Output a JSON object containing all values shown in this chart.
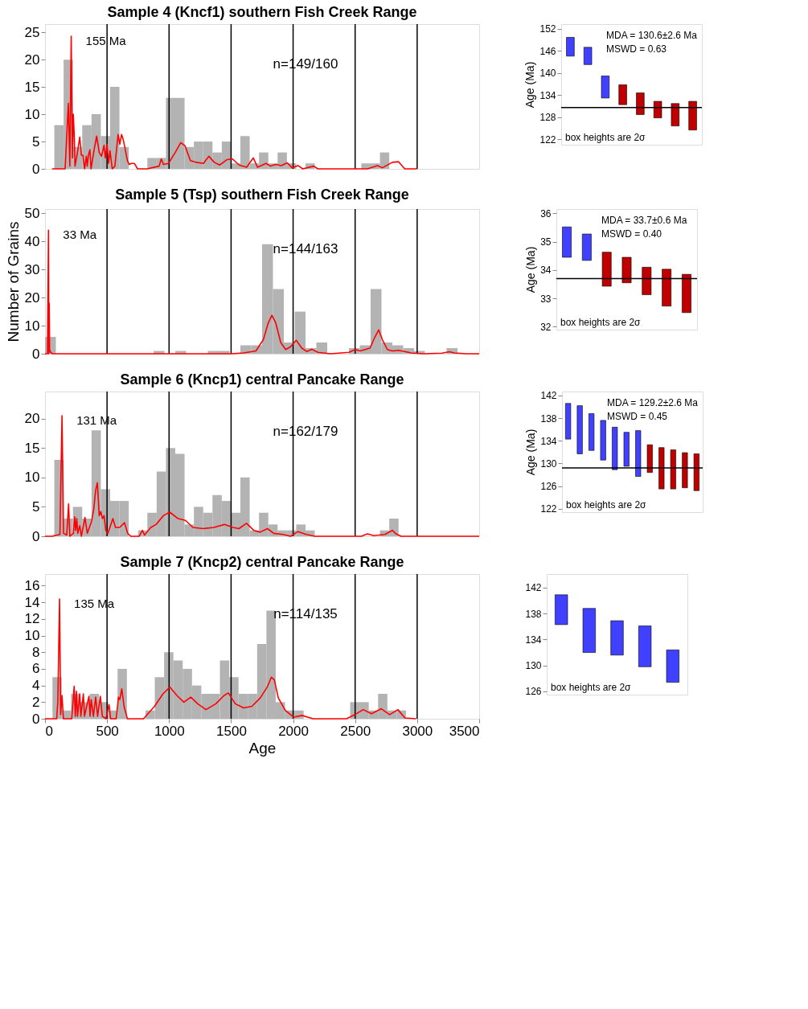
{
  "chart_data": [
    {
      "type": "histogram",
      "title": "Sample 4 (Kncf1) southern Fish Creek Range",
      "color": "#b3b3b3",
      "bins": [
        75,
        150,
        225,
        300,
        375,
        450,
        525,
        600,
        675,
        750,
        825,
        900,
        975,
        1050,
        1125,
        1200,
        1275,
        1350,
        1425,
        1500,
        1575,
        1650,
        1725,
        1800,
        1875,
        1950,
        2025,
        2100,
        2175,
        2250,
        2325,
        2400,
        2475,
        2550,
        2625,
        2700,
        2775
      ],
      "values": [
        8,
        20,
        4,
        8,
        10,
        6,
        15,
        4,
        0,
        0,
        2,
        2,
        13,
        13,
        4,
        5,
        5,
        3,
        5,
        1,
        6,
        1,
        3,
        1,
        3,
        1,
        0,
        1,
        0,
        0,
        0,
        0,
        0,
        1,
        1,
        3
      ],
      "series": [
        {
          "type": "line",
          "color": "#ff0000",
          "x": [
            57,
            162,
            188,
            200,
            211,
            221,
            228,
            235,
            242,
            258,
            280,
            293,
            305,
            319,
            333,
            340,
            350,
            362,
            371,
            392,
            416,
            437,
            455,
            476,
            486,
            500,
            512,
            524,
            542,
            563,
            589,
            603,
            617,
            629,
            643,
            664,
            679,
            697,
            720,
            746,
            824,
            920,
            937,
            955,
            995,
            1050,
            1094,
            1129,
            1172,
            1216,
            1277,
            1321,
            1364,
            1408,
            1469,
            1512,
            1564,
            1625,
            1679,
            1713,
            1782,
            1817,
            1861,
            1904,
            1953,
            1991,
            2040,
            2078,
            2166,
            2200,
            2600,
            2680,
            2720,
            2800,
            2850,
            2900,
            3000
          ],
          "values": [
            0,
            0,
            12,
            0.5,
            24.3,
            2,
            10,
            6.5,
            0.5,
            2.5,
            5.8,
            2.5,
            2.5,
            0,
            2.3,
            0.5,
            2.5,
            3.5,
            0,
            3,
            6,
            3,
            2.3,
            4.3,
            2,
            4.5,
            1,
            3.3,
            0,
            0.5,
            6.3,
            4.5,
            6.3,
            5.5,
            4,
            1.5,
            0.8,
            1,
            1,
            0,
            0,
            0.5,
            1.8,
            0.8,
            1,
            3,
            4.8,
            4.2,
            1.5,
            1.2,
            1,
            2.3,
            1.2,
            0.7,
            1.7,
            1.8,
            0.7,
            0.3,
            2,
            0.3,
            1,
            0.5,
            0.8,
            0.6,
            1.1,
            0.2,
            0.6,
            0,
            0.5,
            0,
            0,
            0.6,
            0.2,
            1.2,
            1.3,
            0,
            0
          ]
        }
      ],
      "xlim": [
        0,
        3500
      ],
      "ylim": [
        0,
        26.5
      ],
      "yticks": [
        0,
        5,
        10,
        15,
        20,
        25
      ],
      "tick_labels": "y",
      "ref_lines": [
        {
          "axis": "x",
          "value": 500,
          "color": "#000000"
        },
        {
          "axis": "x",
          "value": 1000,
          "color": "#000000"
        },
        {
          "axis": "x",
          "value": 1500,
          "color": "#000000"
        },
        {
          "axis": "x",
          "value": 2000,
          "color": "#000000"
        },
        {
          "axis": "x",
          "value": 2500,
          "color": "#000000"
        },
        {
          "axis": "x",
          "value": 3000,
          "color": "#000000"
        }
      ],
      "annotations": [
        {
          "text": "155 Ma",
          "x": 211,
          "y": 24.3
        },
        "n=149/160"
      ]
    },
    {
      "type": "bar",
      "categories": [
        null,
        null,
        null,
        null,
        null,
        null,
        null,
        null
      ],
      "ylabel": "Age (Ma)",
      "base": [
        144.6,
        142.3,
        133.2,
        131.4,
        128.7,
        127.8,
        125.6,
        124.5
      ],
      "values": [
        5.1,
        4.7,
        6.0,
        5.4,
        5.9,
        4.5,
        6.1,
        7.8
      ],
      "colors": [
        "#4040ff",
        "#4040ff",
        "#4040ff",
        "#c00000",
        "#c00000",
        "#c00000",
        "#c00000",
        "#c00000"
      ],
      "ref_lines": [
        {
          "axis": "y",
          "value": 130.6,
          "color": "#000000"
        }
      ],
      "ylim": [
        120.5,
        153.3
      ],
      "yticks": [
        122,
        128,
        134,
        140,
        146,
        152
      ],
      "tick_labels": "y",
      "annotations": [
        "MDA = 130.6±2.6 Ma",
        "MSWD = 0.63",
        "box heights are 2σ"
      ]
    },
    {
      "type": "histogram",
      "title": "Sample 5 (Tsp) southern Fish Creek Range",
      "color": "#b3b3b3",
      "ylabel": "Number of Grains",
      "bins": [
        0,
        87.5,
        175,
        262.5,
        350,
        437.5,
        525,
        612.5,
        700,
        787.5,
        875,
        962.5,
        1050,
        1137.5,
        1225,
        1312.5,
        1400,
        1487.5,
        1575,
        1662.5,
        1750,
        1837.5,
        1925,
        2012.5,
        2100,
        2187.5,
        2275,
        2362.5,
        2450,
        2537.5,
        2625,
        2712.5,
        2800,
        2887.5,
        2975,
        3062.5,
        3150,
        3237.5,
        3325
      ],
      "values": [
        6,
        0,
        0,
        0,
        0,
        0,
        0,
        0,
        0,
        0,
        1,
        0,
        1,
        0,
        0,
        1,
        1,
        0,
        3,
        3,
        39,
        23,
        4,
        15,
        2,
        4,
        0,
        0,
        2,
        3,
        23,
        4,
        3,
        2,
        1,
        0,
        0,
        2
      ],
      "series": [
        {
          "type": "line",
          "color": "#ff0000",
          "x": [
            0,
            20,
            28,
            31,
            34,
            37,
            45,
            60,
            1500,
            1600,
            1700,
            1760,
            1800,
            1829,
            1860,
            1900,
            1940,
            1980,
            2025,
            2070,
            2110,
            2150,
            2200,
            2300,
            2450,
            2500,
            2540,
            2580,
            2620,
            2660,
            2690,
            2720,
            2760,
            2800,
            2850,
            2900,
            2950,
            3050,
            3200,
            3260,
            3300,
            3400,
            3500
          ],
          "values": [
            0,
            0,
            44,
            0,
            18,
            1.5,
            0.5,
            0,
            0,
            0.3,
            1,
            5,
            11,
            13.7,
            11,
            4,
            1.5,
            2.5,
            4.8,
            2,
            0.8,
            1.6,
            0.5,
            0,
            0.5,
            1.5,
            1,
            1.5,
            2,
            6,
            8.5,
            5,
            1.5,
            1,
            1.2,
            0.8,
            0.3,
            0,
            0.2,
            0.7,
            0.3,
            0,
            0
          ]
        }
      ],
      "xlim": [
        0,
        3500
      ],
      "ylim": [
        0,
        51.5
      ],
      "yticks": [
        0,
        10,
        20,
        30,
        40,
        50
      ],
      "tick_labels": "y",
      "ref_lines": [
        {
          "axis": "x",
          "value": 500,
          "color": "#000000"
        },
        {
          "axis": "x",
          "value": 1000,
          "color": "#000000"
        },
        {
          "axis": "x",
          "value": 1500,
          "color": "#000000"
        },
        {
          "axis": "x",
          "value": 2000,
          "color": "#000000"
        },
        {
          "axis": "x",
          "value": 2500,
          "color": "#000000"
        },
        {
          "axis": "x",
          "value": 3000,
          "color": "#000000"
        }
      ],
      "annotations": [
        {
          "text": "33 Ma",
          "x": 28,
          "y": 44
        },
        "n=144/163"
      ]
    },
    {
      "type": "bar",
      "categories": [
        null,
        null,
        null,
        null,
        null,
        null,
        null
      ],
      "ylabel": "Age (Ma)",
      "base": [
        34.45,
        34.34,
        33.43,
        33.55,
        33.13,
        32.73,
        32.5
      ],
      "values": [
        1.07,
        0.93,
        1.2,
        0.9,
        0.97,
        1.3,
        1.35
      ],
      "colors": [
        "#4040ff",
        "#4040ff",
        "#c00000",
        "#c00000",
        "#c00000",
        "#c00000",
        "#c00000"
      ],
      "ref_lines": [
        {
          "axis": "y",
          "value": 33.7,
          "color": "#000000"
        }
      ],
      "ylim": [
        31.9,
        36.15
      ],
      "yticks": [
        32,
        33,
        34,
        35,
        36
      ],
      "tick_labels": "y",
      "annotations": [
        "MDA = 33.7±0.6 Ma",
        "MSWD = 0.40",
        "box heights are 2σ"
      ]
    },
    {
      "type": "histogram",
      "title": "Sample 6 (Kncp1) central Pancake Range",
      "color": "#b3b3b3",
      "bins": [
        75,
        150,
        225,
        300,
        375,
        450,
        525,
        600,
        675,
        750,
        825,
        900,
        975,
        1050,
        1125,
        1200,
        1275,
        1350,
        1425,
        1500,
        1575,
        1650,
        1725,
        1800,
        1875,
        1950,
        2025,
        2100,
        2175,
        2250,
        2325,
        2400,
        2475,
        2550,
        2625,
        2700,
        2775,
        2850
      ],
      "values": [
        13,
        3,
        5,
        3,
        18,
        8,
        6,
        6,
        0,
        1,
        4,
        11,
        15,
        14,
        2,
        5,
        4,
        7,
        6,
        4,
        10,
        1,
        4,
        2,
        1,
        1,
        2,
        1,
        0,
        0,
        0,
        0,
        0,
        0,
        0,
        1,
        3
      ],
      "series": [
        {
          "type": "line",
          "color": "#ff0000",
          "x": [
            0,
            56,
            120,
            137,
            149,
            175,
            190,
            200,
            229,
            239,
            247,
            256,
            264,
            280,
            293,
            322,
            341,
            375,
            392,
            408,
            422,
            437,
            449,
            463,
            476,
            490,
            507,
            547,
            568,
            602,
            641,
            666,
            692,
            759,
            785,
            802,
            853,
            895,
            954,
            1005,
            1073,
            1132,
            1192,
            1276,
            1361,
            1446,
            1514,
            1564,
            1624,
            1683,
            1734,
            1793,
            1844,
            1920,
            1980,
            2039,
            2107,
            2175,
            2550,
            2600,
            2650,
            2740,
            2800,
            2830,
            2870,
            3500
          ],
          "values": [
            0,
            0,
            0.3,
            20.5,
            0.5,
            0.2,
            5.5,
            0,
            0.5,
            3.3,
            1,
            3,
            0.5,
            1.8,
            0,
            3.2,
            0.5,
            2.5,
            4.5,
            7.8,
            9.1,
            3.5,
            4.2,
            3,
            3.5,
            1,
            0.5,
            3,
            1.5,
            1.5,
            2.3,
            0.5,
            0,
            0,
            1,
            0.2,
            1.5,
            2,
            3.5,
            4.1,
            3,
            2.7,
            1.5,
            1.3,
            1.5,
            2,
            1.5,
            1.3,
            2.2,
            1,
            0.7,
            1.3,
            0.5,
            0.3,
            0,
            0.8,
            0.3,
            0,
            0,
            0.4,
            0.1,
            0.3,
            1,
            0.4,
            0,
            0
          ]
        }
      ],
      "xlim": [
        0,
        3500
      ],
      "ylim": [
        0,
        24.6
      ],
      "yticks": [
        0,
        5,
        10,
        15,
        20
      ],
      "tick_labels": "y",
      "ref_lines": [
        {
          "axis": "x",
          "value": 500,
          "color": "#000000"
        },
        {
          "axis": "x",
          "value": 1000,
          "color": "#000000"
        },
        {
          "axis": "x",
          "value": 1500,
          "color": "#000000"
        },
        {
          "axis": "x",
          "value": 2000,
          "color": "#000000"
        },
        {
          "axis": "x",
          "value": 2500,
          "color": "#000000"
        },
        {
          "axis": "x",
          "value": 3000,
          "color": "#000000"
        }
      ],
      "annotations": [
        {
          "text": "131 Ma",
          "x": 137,
          "y": 20.5
        },
        "n=162/179"
      ]
    },
    {
      "type": "bar",
      "categories": [
        null,
        null,
        null,
        null,
        null,
        null,
        null,
        null,
        null,
        null,
        null,
        null
      ],
      "ylabel": "Age (Ma)",
      "base": [
        134.3,
        131.7,
        132.3,
        130.6,
        128.9,
        129.5,
        127.7,
        128.4,
        125.5,
        125.5,
        125.7,
        125.2
      ],
      "values": [
        6.3,
        8.5,
        6.5,
        7.0,
        7.5,
        6.0,
        8.1,
        4.9,
        7.3,
        6.9,
        6.2,
        6.5
      ],
      "colors": [
        "#4040ff",
        "#4040ff",
        "#4040ff",
        "#4040ff",
        "#4040ff",
        "#4040ff",
        "#4040ff",
        "#c00000",
        "#c00000",
        "#c00000",
        "#c00000",
        "#c00000"
      ],
      "ref_lines": [
        {
          "axis": "y",
          "value": 129.2,
          "color": "#000000"
        }
      ],
      "ylim": [
        121.4,
        142.7
      ],
      "yticks": [
        122,
        126,
        130,
        134,
        138,
        142
      ],
      "tick_labels": "y",
      "annotations": [
        "MDA = 129.2±2.6 Ma",
        "MSWD = 0.45",
        "box heights are 2σ"
      ]
    },
    {
      "type": "histogram",
      "title": "Sample 7 (Kncp2) central Pancake Range",
      "color": "#b3b3b3",
      "xlabel": "Age",
      "bins": [
        60,
        135,
        210,
        285,
        360,
        435,
        510,
        585,
        660,
        735,
        810,
        885,
        960,
        1035,
        1110,
        1185,
        1260,
        1335,
        1410,
        1485,
        1560,
        1635,
        1710,
        1785,
        1860,
        1935,
        2010,
        2085,
        2160,
        2235,
        2310,
        2385,
        2460,
        2535,
        2610,
        2685,
        2760,
        2835,
        2910
      ],
      "values": [
        5,
        1,
        3,
        2,
        3,
        2,
        1,
        6,
        0,
        0,
        1,
        5,
        8,
        7,
        6,
        4,
        3,
        3,
        7,
        5,
        3,
        3,
        9,
        13,
        2,
        1,
        1,
        0,
        0,
        0,
        0,
        0,
        2,
        2,
        1,
        3,
        1,
        1
      ],
      "series": [
        {
          "type": "line",
          "color": "#ff0000",
          "x": [
            0,
            94,
            103,
            117,
            126,
            137,
            148,
            215,
            235,
            244,
            253,
            262,
            280,
            289,
            309,
            318,
            354,
            363,
            372,
            390,
            408,
            424,
            446,
            462,
            491,
            516,
            529,
            574,
            592,
            603,
            619,
            637,
            664,
            794,
            883,
            951,
            1007,
            1063,
            1119,
            1175,
            1231,
            1298,
            1377,
            1444,
            1478,
            1534,
            1601,
            1668,
            1735,
            1791,
            1825,
            1848,
            1881,
            1937,
            2004,
            2072,
            2161,
            2430,
            2498,
            2565,
            2632,
            2711,
            2778,
            2845,
            2901,
            2991
          ],
          "values": [
            0,
            0,
            2,
            14.4,
            0.5,
            2.8,
            0,
            0,
            3.9,
            0.3,
            3.3,
            0.3,
            3,
            0.3,
            3,
            0.3,
            2.7,
            0.3,
            2.3,
            0.3,
            2.6,
            0.3,
            2.7,
            0.3,
            0,
            1.7,
            0,
            0,
            2.6,
            2.3,
            3.6,
            1.5,
            0,
            0,
            1.5,
            3,
            3.8,
            2.8,
            2,
            2.6,
            1.8,
            1.1,
            1.8,
            2.8,
            3.1,
            1.8,
            1.3,
            1.5,
            2.5,
            3.8,
            5,
            4.7,
            2.5,
            1,
            0.2,
            0.4,
            0,
            0,
            0.5,
            1.1,
            0.6,
            1.2,
            0.5,
            1.1,
            0.1,
            0
          ]
        }
      ],
      "xlim": [
        0,
        3500
      ],
      "xticks": [
        0,
        500,
        1000,
        1500,
        2000,
        2500,
        3000,
        3500
      ],
      "ylim": [
        0,
        17.4
      ],
      "yticks": [
        0,
        2,
        4,
        6,
        8,
        10,
        12,
        14,
        16
      ],
      "ref_lines": [
        {
          "axis": "x",
          "value": 500,
          "color": "#000000"
        },
        {
          "axis": "x",
          "value": 1000,
          "color": "#000000"
        },
        {
          "axis": "x",
          "value": 1500,
          "color": "#000000"
        },
        {
          "axis": "x",
          "value": 2000,
          "color": "#000000"
        },
        {
          "axis": "x",
          "value": 2500,
          "color": "#000000"
        },
        {
          "axis": "x",
          "value": 3000,
          "color": "#000000"
        }
      ],
      "annotations": [
        {
          "text": "135 Ma",
          "x": 117,
          "y": 14.4
        },
        "n=114/135"
      ]
    },
    {
      "type": "bar",
      "categories": [
        null,
        null,
        null,
        null,
        null
      ],
      "base": [
        136.3,
        132.0,
        131.6,
        129.8,
        127.4
      ],
      "values": [
        4.6,
        6.8,
        5.3,
        6.3,
        5.0
      ],
      "colors": [
        "#4040ff",
        "#4040ff",
        "#4040ff",
        "#4040ff",
        "#4040ff"
      ],
      "ylim": [
        125.5,
        144.1
      ],
      "yticks": [
        126,
        130,
        134,
        138,
        142
      ],
      "tick_labels": "y",
      "annotations": [
        "box heights are 2σ"
      ]
    }
  ]
}
